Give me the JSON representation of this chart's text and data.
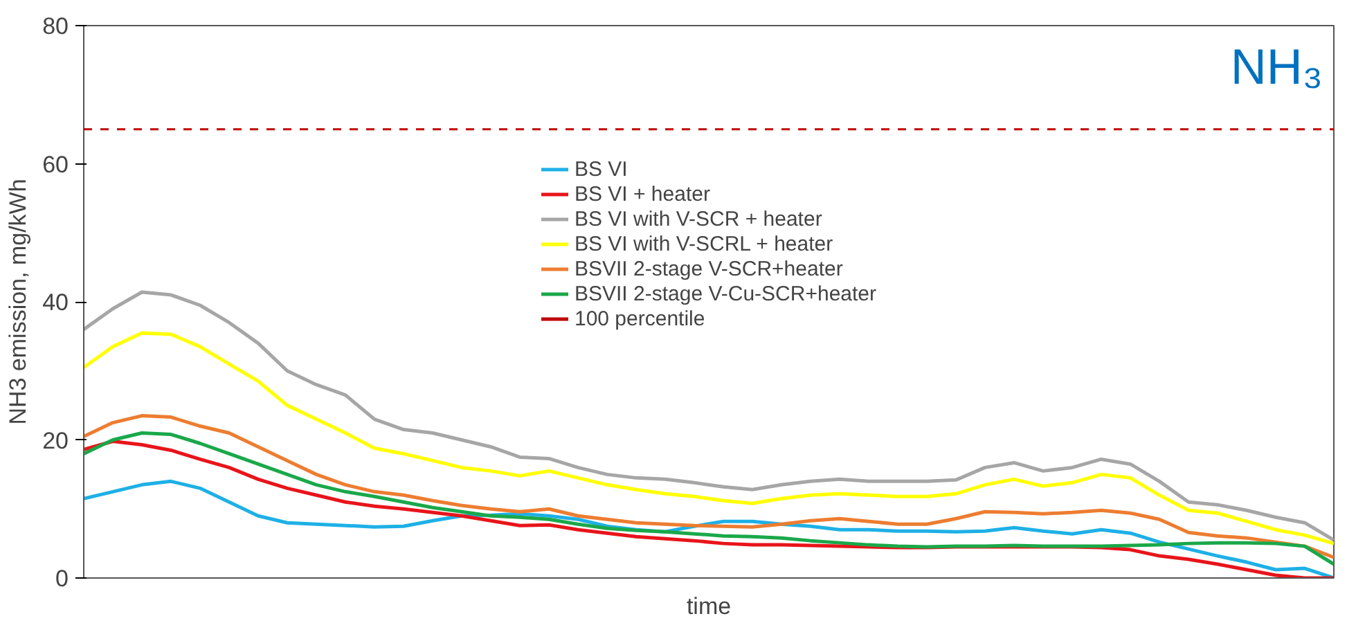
{
  "chart_data": {
    "type": "line",
    "xlabel": "time",
    "ylabel": "NH3 emission, mg/kWh",
    "annotations": [
      "NH₃"
    ],
    "categories": [
      null,
      null,
      null,
      null,
      null,
      null,
      null,
      null,
      null,
      null,
      null,
      null,
      null,
      null,
      null,
      null,
      null,
      null,
      null,
      null,
      null,
      null,
      null,
      null,
      null,
      null,
      null,
      null,
      null,
      null,
      null,
      null,
      null,
      null,
      null,
      null,
      null,
      null,
      null,
      null,
      null,
      null,
      null,
      null
    ],
    "series": [
      {
        "name": "BS VI",
        "color": "#1eb0e6",
        "values": [
          11.5,
          12.5,
          13.5,
          14,
          13,
          11,
          9,
          8,
          7.8,
          7.6,
          7.4,
          7.5,
          8.3,
          9,
          9.1,
          9.3,
          9,
          8.5,
          7.5,
          7,
          6.7,
          7.5,
          8.2,
          8.2,
          7.8,
          7.5,
          7,
          7,
          6.8,
          6.8,
          6.7,
          6.8,
          7.3,
          6.8,
          6.4,
          7,
          6.5,
          5.2,
          4.2,
          3.2,
          2.3,
          1.2,
          1.4,
          0
        ]
      },
      {
        "name": "BS VI + heater",
        "color": "#e8141a",
        "values": [
          18.6,
          19.8,
          19.3,
          18.5,
          17.2,
          16,
          14.3,
          13,
          12,
          11,
          10.4,
          10,
          9.5,
          9,
          8.3,
          7.6,
          7.7,
          7,
          6.5,
          6,
          5.7,
          5.4,
          5,
          4.8,
          4.8,
          4.7,
          4.6,
          4.5,
          4.4,
          4.4,
          4.5,
          4.5,
          4.5,
          4.5,
          4.5,
          4.4,
          4.1,
          3.2,
          2.7,
          2,
          1.2,
          0.4,
          0,
          0
        ]
      },
      {
        "name": "BS VI with V-SCR + heater",
        "color": "#a6a6a6",
        "values": [
          36,
          39,
          41.4,
          41,
          39.5,
          37,
          34,
          30,
          28,
          26.5,
          23,
          21.5,
          21,
          20,
          19,
          17.5,
          17.3,
          16,
          15,
          14.5,
          14.3,
          13.8,
          13.2,
          12.8,
          13.5,
          14,
          14.3,
          14,
          14,
          14,
          14.2,
          16,
          16.7,
          15.5,
          16,
          17.2,
          16.5,
          14,
          11,
          10.6,
          9.8,
          8.8,
          8,
          5.5
        ]
      },
      {
        "name": "BS VI with V-SCRL + heater",
        "color": "#ffff00",
        "values": [
          30.5,
          33.5,
          35.5,
          35.3,
          33.5,
          31,
          28.5,
          25,
          23,
          21,
          18.8,
          18,
          17,
          16,
          15.5,
          14.8,
          15.5,
          14.5,
          13.5,
          12.8,
          12.2,
          11.8,
          11.2,
          10.8,
          11.5,
          12,
          12.2,
          12,
          11.8,
          11.8,
          12.2,
          13.5,
          14.3,
          13.3,
          13.8,
          15,
          14.5,
          12,
          9.8,
          9.4,
          8.2,
          7,
          6.2,
          5
        ]
      },
      {
        "name": "BSVII 2-stage V-SCR+heater",
        "color": "#ed7d31",
        "values": [
          20.5,
          22.5,
          23.5,
          23.3,
          22,
          21,
          19,
          17,
          15,
          13.5,
          12.5,
          12,
          11.2,
          10.5,
          10,
          9.6,
          10,
          9,
          8.5,
          8,
          7.8,
          7.6,
          7.5,
          7.4,
          7.8,
          8.3,
          8.6,
          8.2,
          7.8,
          7.8,
          8.6,
          9.6,
          9.5,
          9.3,
          9.5,
          9.8,
          9.4,
          8.5,
          6.6,
          6.1,
          5.8,
          5.2,
          4.6,
          3
        ]
      },
      {
        "name": "BSVII 2-stage V-Cu-SCR+heater",
        "color": "#1aa84a",
        "values": [
          18,
          20,
          21,
          20.8,
          19.5,
          18,
          16.5,
          15,
          13.5,
          12.5,
          11.8,
          11,
          10.2,
          9.6,
          9,
          8.8,
          8.5,
          7.8,
          7.2,
          6.9,
          6.7,
          6.4,
          6.1,
          6,
          5.8,
          5.4,
          5.1,
          4.8,
          4.6,
          4.5,
          4.6,
          4.6,
          4.7,
          4.6,
          4.6,
          4.6,
          4.7,
          4.8,
          5,
          5.1,
          5.1,
          5,
          4.6,
          2
        ]
      }
    ],
    "ref_lines": [
      {
        "axis": "y",
        "value": 65,
        "label": "100 percentile",
        "color": "#c00000",
        "line_style": "dashed"
      }
    ],
    "ylim": [
      0,
      80
    ],
    "yticks": [
      0,
      20,
      40,
      60,
      80
    ],
    "grid": false,
    "legend": "top",
    "tick_labels": "y",
    "marker": "none",
    "line_style": "solid"
  }
}
